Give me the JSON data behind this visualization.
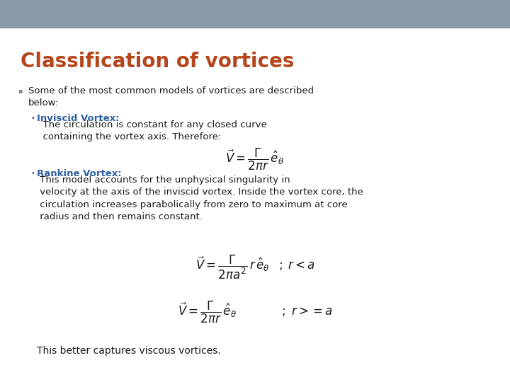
{
  "title": "Classification of vortices",
  "title_color": "#B5451B",
  "title_fontsize": 20,
  "background_color": "#FFFFFF",
  "header_bar_color": "#8A9BA8",
  "body_text_color": "#1a1a1a",
  "blue_label_color": "#2E5FA3",
  "bottom_note": "This better captures viscous vortices.",
  "eq1": "$\\vec{V} = \\dfrac{\\Gamma}{2\\pi r}\\, \\hat{e}_{\\theta}$",
  "eq2": "$\\vec{V} = \\dfrac{\\Gamma}{2\\pi a^2}\\, r\\, \\hat{e}_{\\theta} \\;\\;\\; ; \\; r < a$",
  "eq3": "$\\vec{V} = \\dfrac{\\Gamma}{2\\pi r}\\, \\hat{e}_{\\theta} \\qquad\\qquad ; \\; r{>=}a$"
}
